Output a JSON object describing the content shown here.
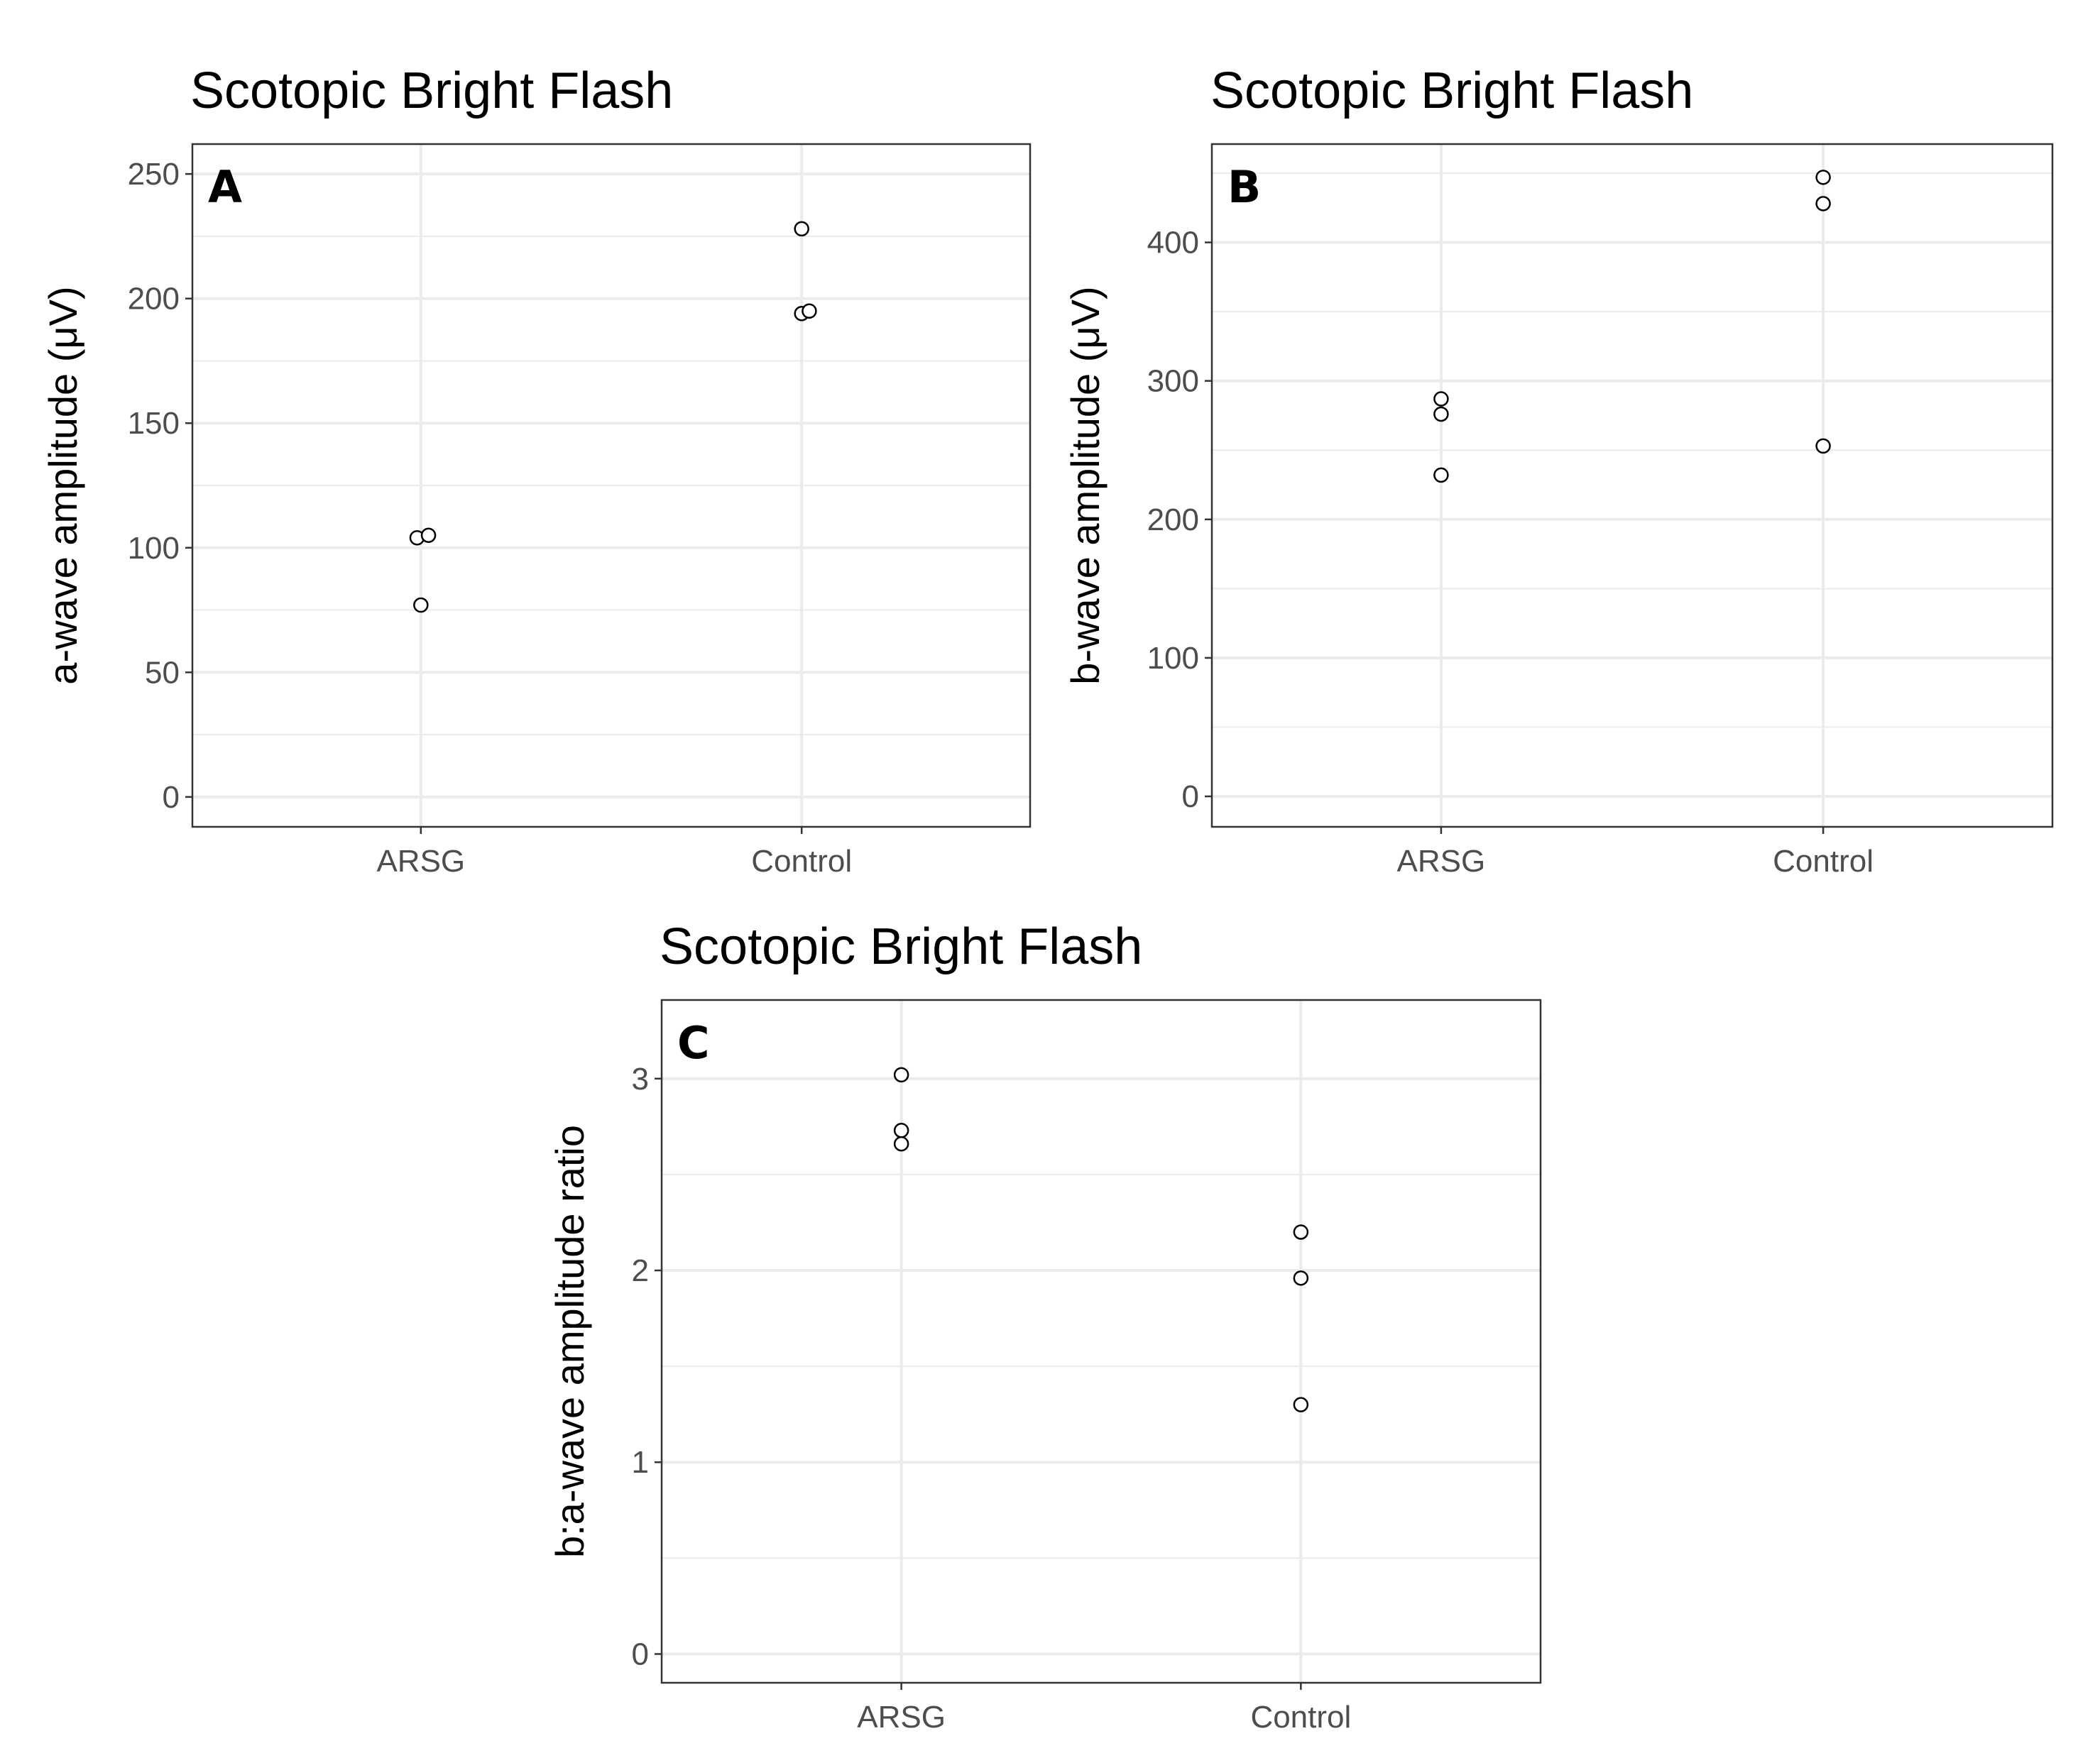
{
  "chart_data": [
    {
      "type": "scatter",
      "panel": "A",
      "title": "Scotopic Bright Flash",
      "xlabel": "",
      "ylabel": "a-wave amplitude (μV)",
      "categories": [
        "ARSG",
        "Control"
      ],
      "ylim": [
        -12,
        262
      ],
      "yticks": [
        0,
        50,
        100,
        150,
        200,
        250
      ],
      "yminor": [
        25,
        75,
        125,
        175,
        225
      ],
      "grid": true,
      "points": [
        {
          "category": "ARSG",
          "y": 104,
          "jitter": -0.01
        },
        {
          "category": "ARSG",
          "y": 105,
          "jitter": 0.02
        },
        {
          "category": "ARSG",
          "y": 77,
          "jitter": 0.0
        },
        {
          "category": "Control",
          "y": 228,
          "jitter": 0.0
        },
        {
          "category": "Control",
          "y": 194,
          "jitter": 0.0
        },
        {
          "category": "Control",
          "y": 195,
          "jitter": 0.02
        }
      ]
    },
    {
      "type": "scatter",
      "panel": "B",
      "title": "Scotopic Bright Flash",
      "xlabel": "",
      "ylabel": "b-wave amplitude (μV)",
      "categories": [
        "ARSG",
        "Control"
      ],
      "ylim": [
        -22,
        471
      ],
      "yticks": [
        0,
        100,
        200,
        300,
        400
      ],
      "yminor": [
        50,
        150,
        250,
        350,
        450
      ],
      "grid": true,
      "points": [
        {
          "category": "ARSG",
          "y": 287,
          "jitter": 0.0
        },
        {
          "category": "ARSG",
          "y": 276,
          "jitter": 0.0
        },
        {
          "category": "ARSG",
          "y": 232,
          "jitter": 0.0
        },
        {
          "category": "Control",
          "y": 447,
          "jitter": 0.0
        },
        {
          "category": "Control",
          "y": 428,
          "jitter": 0.0
        },
        {
          "category": "Control",
          "y": 253,
          "jitter": 0.0
        }
      ]
    },
    {
      "type": "scatter",
      "panel": "C",
      "title": "Scotopic Bright Flash",
      "xlabel": "",
      "ylabel": "b:a-wave amplitude ratio",
      "categories": [
        "ARSG",
        "Control"
      ],
      "ylim": [
        -0.15,
        3.41
      ],
      "yticks": [
        0,
        1,
        2,
        3
      ],
      "yminor": [
        0.5,
        1.5,
        2.5
      ],
      "grid": true,
      "points": [
        {
          "category": "ARSG",
          "y": 3.02,
          "jitter": 0.0
        },
        {
          "category": "ARSG",
          "y": 2.73,
          "jitter": 0.0
        },
        {
          "category": "ARSG",
          "y": 2.66,
          "jitter": 0.0
        },
        {
          "category": "Control",
          "y": 2.2,
          "jitter": 0.0
        },
        {
          "category": "Control",
          "y": 1.96,
          "jitter": 0.0
        },
        {
          "category": "Control",
          "y": 1.3,
          "jitter": 0.0
        }
      ]
    }
  ]
}
